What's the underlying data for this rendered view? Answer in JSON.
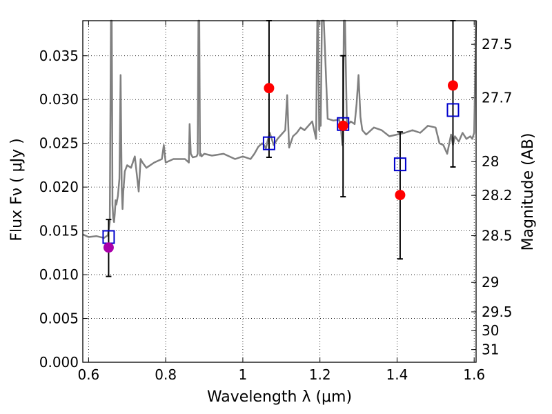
{
  "chart_data": {
    "type": "scatter",
    "title": "",
    "xlabel": "Wavelength  λ (μm)",
    "ylabel": "Flux  Fν  ( μJy )",
    "y2label": "Magnitude (AB)",
    "xlim": [
      0.585,
      1.605
    ],
    "ylim": [
      0.0,
      0.039
    ],
    "grid": true,
    "x_ticks": [
      0.6,
      0.8,
      1.0,
      1.2,
      1.4,
      1.6
    ],
    "x_tick_labels": [
      "0.6",
      "0.8",
      "1",
      "1.2",
      "1.4",
      "1.6"
    ],
    "y_ticks": [
      0.0,
      0.005,
      0.01,
      0.015,
      0.02,
      0.025,
      0.03,
      0.035
    ],
    "y_tick_labels": [
      "0.000",
      "0.005",
      "0.010",
      "0.015",
      "0.020",
      "0.025",
      "0.030",
      "0.035"
    ],
    "y2_ticks": [
      {
        "label": "27.5",
        "mag": 27.5
      },
      {
        "label": "27.7",
        "mag": 27.7
      },
      {
        "label": "28",
        "mag": 28.0
      },
      {
        "label": "28.2",
        "mag": 28.2
      },
      {
        "label": "28.5",
        "mag": 28.5
      },
      {
        "label": "29",
        "mag": 29.0
      },
      {
        "label": "29.5",
        "mag": 29.5
      },
      {
        "label": "30",
        "mag": 30.0
      },
      {
        "label": "31",
        "mag": 31.0
      }
    ],
    "colors": {
      "template": "#808080",
      "observed": "#ff0000",
      "observed_uv": "#aa00aa",
      "model": "#0000cc",
      "errorbar": "#000000"
    },
    "template_spectrum": {
      "x": [
        0.585,
        0.6,
        0.62,
        0.64,
        0.65,
        0.655,
        0.658,
        0.66,
        0.661,
        0.662,
        0.664,
        0.666,
        0.668,
        0.67,
        0.672,
        0.676,
        0.68,
        0.683,
        0.686,
        0.688,
        0.69,
        0.694,
        0.7,
        0.71,
        0.72,
        0.73,
        0.735,
        0.74,
        0.75,
        0.77,
        0.79,
        0.795,
        0.8,
        0.82,
        0.85,
        0.86,
        0.862,
        0.865,
        0.87,
        0.88,
        0.883,
        0.885,
        0.887,
        0.889,
        0.891,
        0.893,
        0.9,
        0.92,
        0.95,
        0.98,
        1.0,
        1.02,
        1.03,
        1.04,
        1.05,
        1.055,
        1.06,
        1.065,
        1.07,
        1.08,
        1.09,
        1.1,
        1.11,
        1.115,
        1.12,
        1.13,
        1.14,
        1.15,
        1.16,
        1.17,
        1.18,
        1.19,
        1.193,
        1.195,
        1.198,
        1.2,
        1.202,
        1.205,
        1.21,
        1.22,
        1.235,
        1.25,
        1.255,
        1.258,
        1.26,
        1.262,
        1.265,
        1.27,
        1.28,
        1.29,
        1.295,
        1.3,
        1.305,
        1.31,
        1.32,
        1.34,
        1.36,
        1.38,
        1.4,
        1.42,
        1.44,
        1.46,
        1.48,
        1.5,
        1.51,
        1.52,
        1.53,
        1.54,
        1.545,
        1.55,
        1.56,
        1.57,
        1.58,
        1.59,
        1.595,
        1.6,
        1.605
      ],
      "y": [
        0.0146,
        0.0143,
        0.0144,
        0.0142,
        0.0145,
        0.016,
        0.04,
        0.04,
        0.03,
        0.018,
        0.0165,
        0.016,
        0.017,
        0.0185,
        0.018,
        0.019,
        0.021,
        0.0328,
        0.02,
        0.0175,
        0.0195,
        0.0218,
        0.0225,
        0.0222,
        0.0235,
        0.0195,
        0.0232,
        0.0228,
        0.0222,
        0.0228,
        0.0232,
        0.0248,
        0.0228,
        0.0232,
        0.0232,
        0.0228,
        0.0272,
        0.0238,
        0.0234,
        0.0235,
        0.0238,
        0.04,
        0.04,
        0.0236,
        0.0238,
        0.0235,
        0.0238,
        0.0236,
        0.0238,
        0.0232,
        0.0235,
        0.0232,
        0.0238,
        0.0246,
        0.025,
        0.0248,
        0.0244,
        0.0254,
        0.0262,
        0.0248,
        0.0255,
        0.026,
        0.0265,
        0.0305,
        0.0245,
        0.0258,
        0.0262,
        0.0268,
        0.0265,
        0.027,
        0.0275,
        0.0255,
        0.04,
        0.04,
        0.0265,
        0.0275,
        0.027,
        0.04,
        0.04,
        0.0278,
        0.0276,
        0.0277,
        0.0265,
        0.0248,
        0.0252,
        0.04,
        0.04,
        0.027,
        0.0275,
        0.0272,
        0.0295,
        0.0328,
        0.028,
        0.0265,
        0.026,
        0.0268,
        0.0265,
        0.0258,
        0.026,
        0.0262,
        0.0265,
        0.0262,
        0.027,
        0.0268,
        0.025,
        0.0248,
        0.0238,
        0.026,
        0.0248,
        0.0258,
        0.0252,
        0.0262,
        0.0255,
        0.0258,
        0.0255,
        0.0262,
        0.04
      ]
    },
    "observed_points": [
      {
        "x": 0.652,
        "y": 0.0131,
        "yerr_low": 0.0098,
        "yerr_high": 0.0163,
        "color": "#aa00aa"
      },
      {
        "x": 1.068,
        "y": 0.0313,
        "yerr_low": 0.0234,
        "yerr_high": 0.039,
        "color": "#ff0000"
      },
      {
        "x": 1.26,
        "y": 0.027,
        "yerr_low": 0.0189,
        "yerr_high": 0.035,
        "color": "#ff0000"
      },
      {
        "x": 1.408,
        "y": 0.0191,
        "yerr_low": 0.0118,
        "yerr_high": 0.0263,
        "color": "#ff0000"
      },
      {
        "x": 1.545,
        "y": 0.0316,
        "yerr_low": 0.0223,
        "yerr_high": 0.039,
        "color": "#ff0000"
      }
    ],
    "model_points": [
      {
        "x": 0.652,
        "y": 0.0143
      },
      {
        "x": 1.068,
        "y": 0.025
      },
      {
        "x": 1.26,
        "y": 0.0272
      },
      {
        "x": 1.408,
        "y": 0.0226
      },
      {
        "x": 1.545,
        "y": 0.0288
      }
    ]
  }
}
